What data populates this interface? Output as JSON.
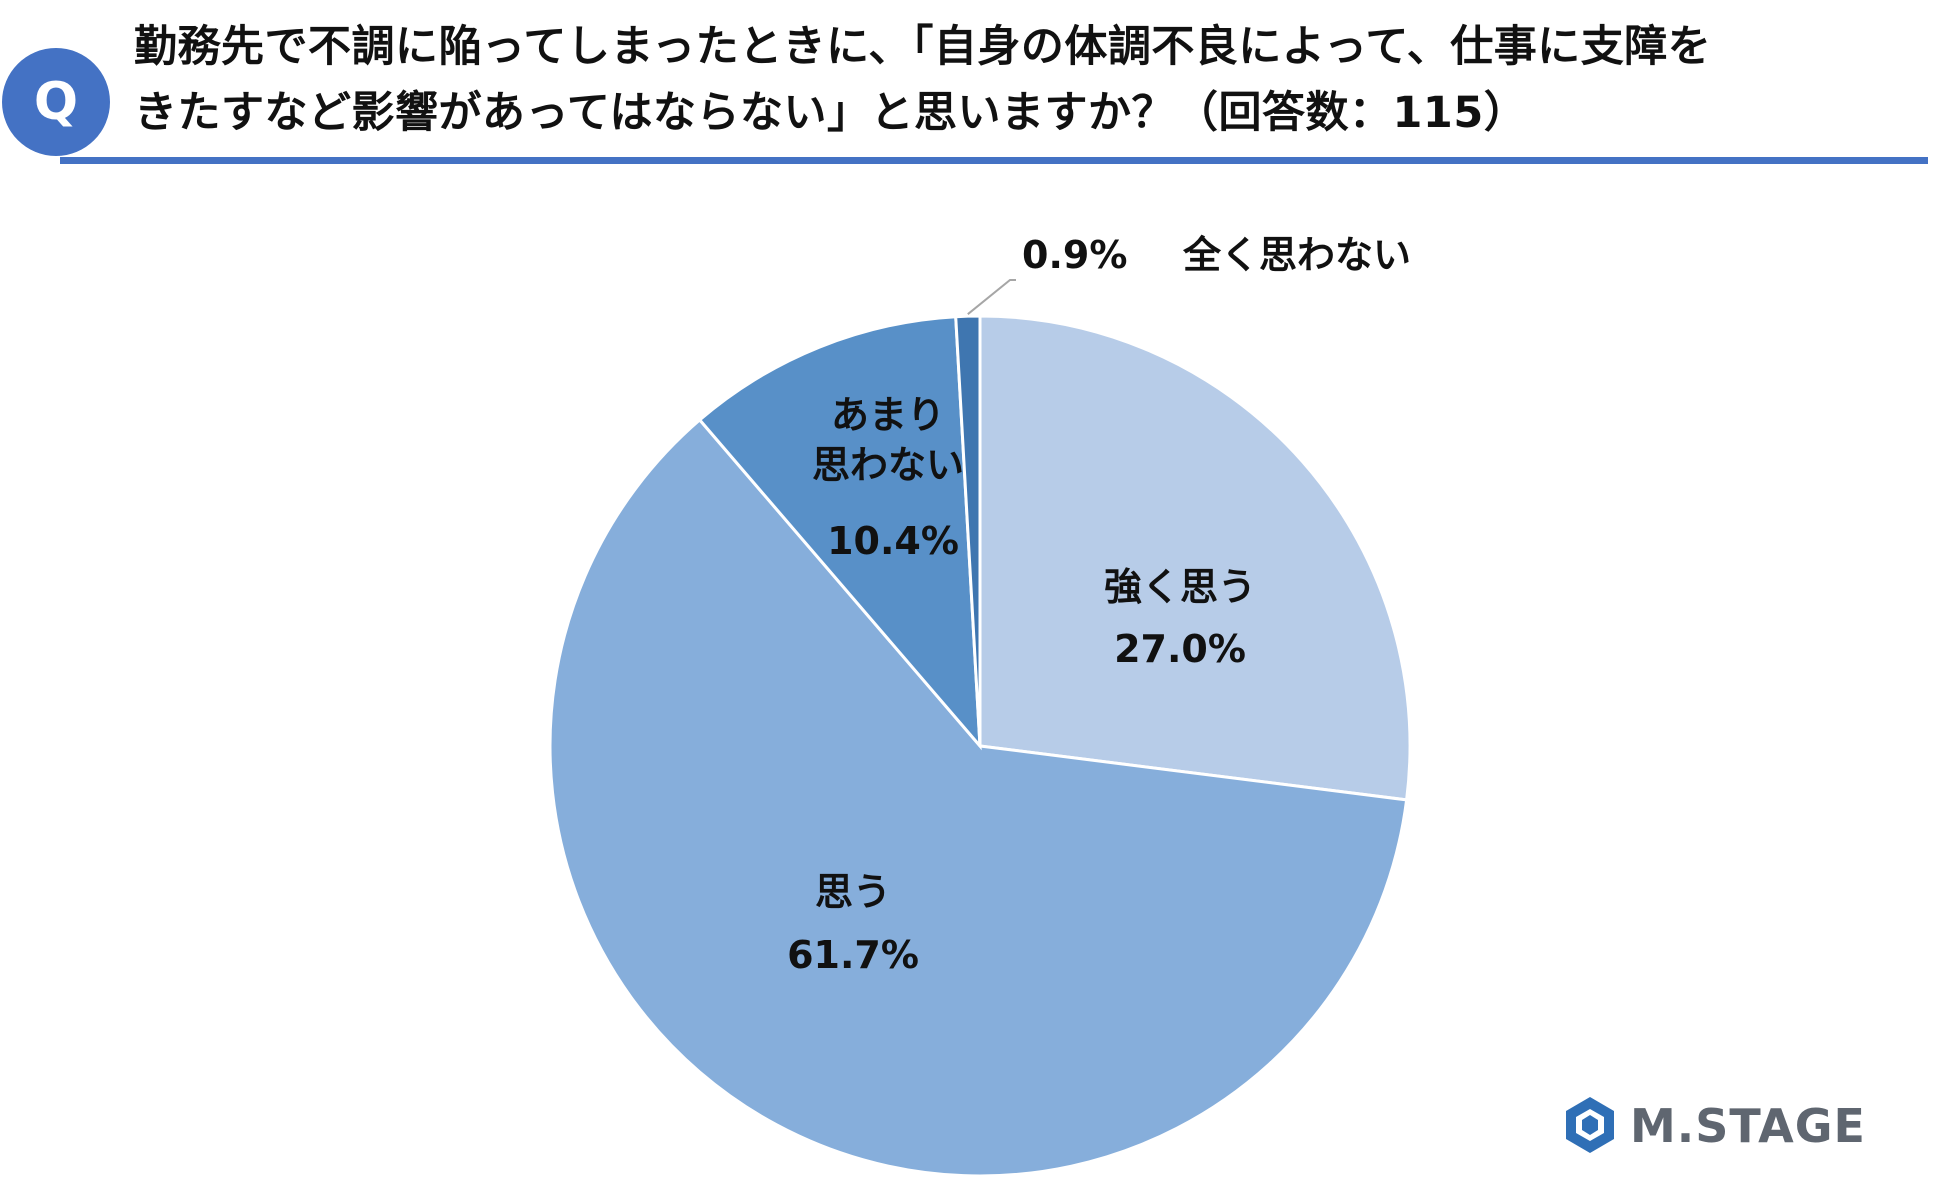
{
  "header": {
    "badge": "Q",
    "title_line1": "勤務先で不調に陥ってしまったときに、「自身の体調不良によって、仕事に支障を",
    "title_line2": "きたすなど影響があってはならない」と思いますか？（回答数：115）"
  },
  "colors": {
    "accent": "#4472c4",
    "slice_strongly_agree": "#b7cce8",
    "slice_agree": "#86aedb",
    "slice_disagree_somewhat": "#5890c8",
    "slice_disagree_strongly": "#3f76b0"
  },
  "chart_data": {
    "type": "pie",
    "total_responses": 115,
    "slices": [
      {
        "label_lines": [
          "強く思う"
        ],
        "value": 27.0,
        "value_label": "27.0%"
      },
      {
        "label_lines": [
          "思う"
        ],
        "value": 61.7,
        "value_label": "61.7%"
      },
      {
        "label_lines": [
          "あまり",
          "思わない"
        ],
        "value": 10.4,
        "value_label": "10.4%"
      },
      {
        "label_lines": [
          "全く思わない"
        ],
        "value": 0.9,
        "value_label": "0.9%"
      }
    ]
  },
  "logo": {
    "text": "M.STAGE"
  }
}
